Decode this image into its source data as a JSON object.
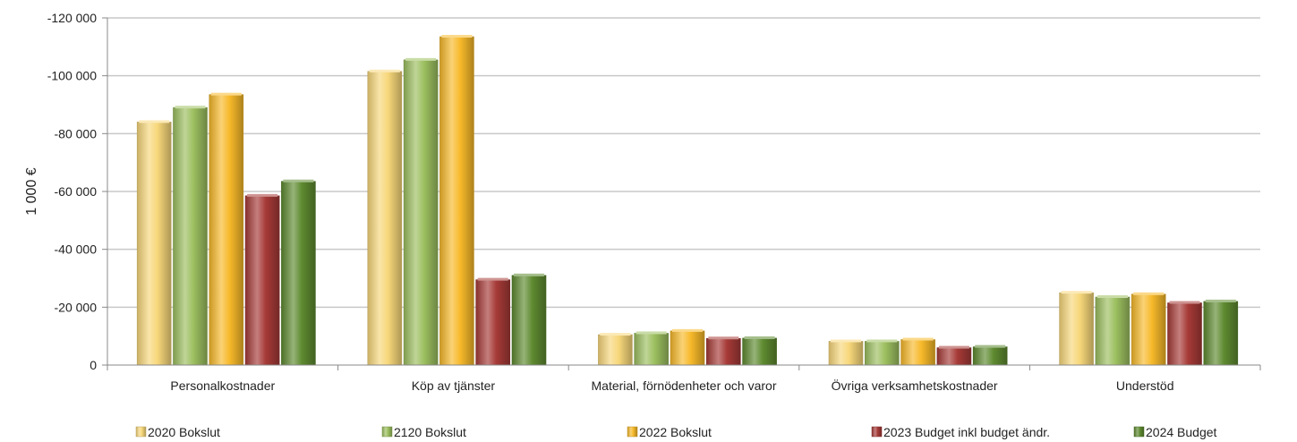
{
  "chart_data": {
    "type": "bar",
    "title": "",
    "xlabel": "",
    "ylabel": "1 000 €",
    "ylim": [
      0,
      -120000
    ],
    "yticks": [
      {
        "value": 0,
        "label": "0"
      },
      {
        "value": -20000,
        "label": "-20 000"
      },
      {
        "value": -40000,
        "label": "-40 000"
      },
      {
        "value": -60000,
        "label": "-60 000"
      },
      {
        "value": -80000,
        "label": "-80 000"
      },
      {
        "value": -100000,
        "label": "-100 000"
      },
      {
        "value": -120000,
        "label": "-120 000"
      }
    ],
    "grid": true,
    "legend_position": "bottom",
    "categories": [
      "Personalkostnader",
      "Köp av tjänster",
      "Material, förnödenheter och varor",
      "Övriga verksamhetskostnader",
      "Understöd"
    ],
    "series": [
      {
        "name": "2020 Bokslut",
        "color": "#f7d77a",
        "values": [
          -84000,
          -101500,
          -10500,
          -8200,
          -25000
        ]
      },
      {
        "name": "2120 Bokslut",
        "color": "#9cbf5f",
        "values": [
          -89000,
          -105500,
          -11000,
          -8200,
          -23500
        ]
      },
      {
        "name": "2022 Bokslut",
        "color": "#f7b92a",
        "values": [
          -93500,
          -113500,
          -11800,
          -8800,
          -24500
        ]
      },
      {
        "name": "2023 Budget inkl budget ändr.",
        "color": "#a63a37",
        "values": [
          -58500,
          -29500,
          -9200,
          -6000,
          -21500
        ]
      },
      {
        "name": "2024 Budget",
        "color": "#5e8a30",
        "values": [
          -63500,
          -31000,
          -9300,
          -6300,
          -22000
        ]
      }
    ]
  }
}
